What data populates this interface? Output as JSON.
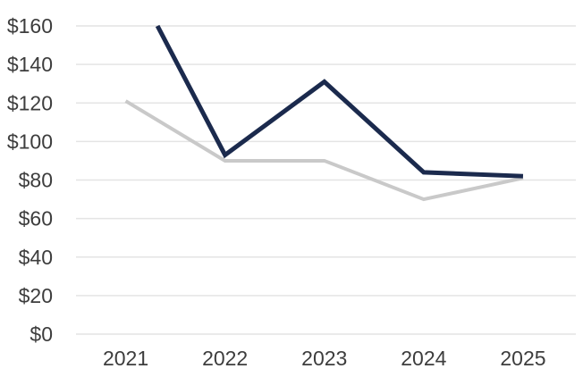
{
  "chart_data": {
    "type": "line",
    "title": "",
    "categories": [
      "2021",
      "2022",
      "2023",
      "2024",
      "2025"
    ],
    "series": [
      {
        "name": "navy-series",
        "color": "#1b2a4d",
        "stroke_width": 5,
        "values": [
          160,
          93,
          131,
          84,
          82
        ],
        "band_offsets": [
          0.32,
          0,
          0,
          0,
          0
        ],
        "clipped_at_top": true
      },
      {
        "name": "gray-series",
        "color": "#c9c9c9",
        "stroke_width": 4,
        "values": [
          121,
          90,
          90,
          70,
          81
        ],
        "band_offsets": [
          0,
          0,
          0,
          0,
          0
        ]
      }
    ],
    "y_axis": {
      "min": 0,
      "max": 160,
      "step": 20,
      "tick_prefix": "$",
      "tick_labels": [
        "$0",
        "$20",
        "$40",
        "$60",
        "$80",
        "$100",
        "$120",
        "$140",
        "$160"
      ]
    },
    "x_axis": {
      "tick_labels": [
        "2021",
        "2022",
        "2023",
        "2024",
        "2025"
      ]
    },
    "grid": "horizontal",
    "legend": "none",
    "colors": {
      "grid": "#e4e4e4",
      "text": "#3d3d3d",
      "background": "#ffffff"
    }
  }
}
